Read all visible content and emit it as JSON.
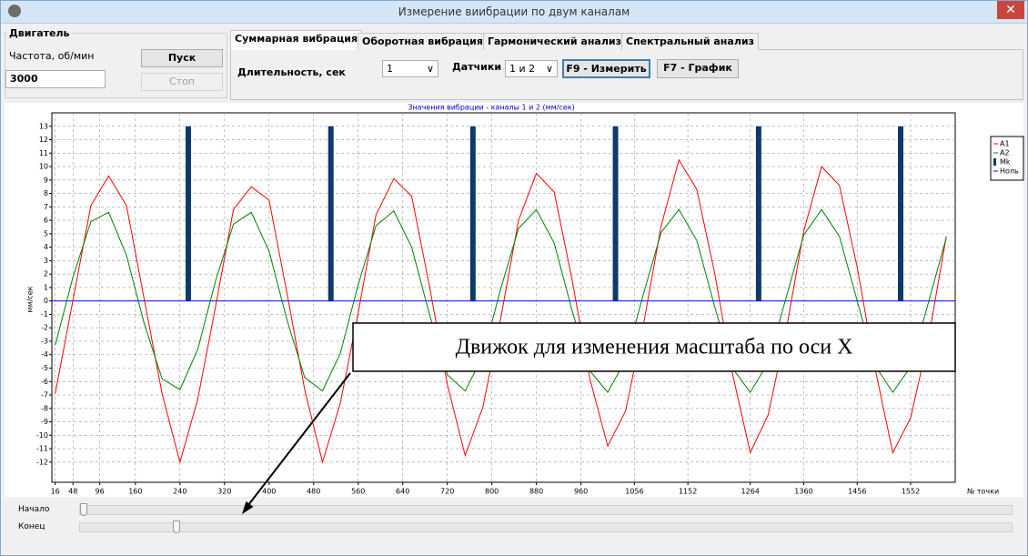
{
  "window": {
    "title": "Измерение виибрации по двум каналам"
  },
  "engine_panel": {
    "title": "Двигатель",
    "freq_label": "Частота, об/мин",
    "freq_value": 3000,
    "start": "Пуск",
    "stop": "Стоп"
  },
  "tabs": [
    "Суммарная вибрация",
    "Оборотная вибрация",
    "Гармонический анализ",
    "Спектральный анализ"
  ],
  "controls": {
    "duration_label": "Длительность, сек",
    "duration_value": 1,
    "sensors_label": "Датчики",
    "sensors_value": "1 и 2",
    "measure": "F9 - Измерить",
    "graph": "F7 - График"
  },
  "chart_data": {
    "type": "line",
    "title": "Значения вибрации  - каналы 1 и 2 (мм/сек)",
    "y_label": "мм/сек",
    "x_label": "№ точки",
    "x": [
      16,
      48,
      80,
      112,
      144,
      176,
      208,
      240,
      272,
      304,
      336,
      368,
      400,
      432,
      464,
      496,
      528,
      560,
      592,
      624,
      656,
      688,
      720,
      752,
      784,
      816,
      848,
      880,
      912,
      944,
      976,
      1008,
      1040,
      1072,
      1104,
      1136,
      1168,
      1200,
      1232,
      1264,
      1296,
      1328,
      1360,
      1392,
      1424,
      1456,
      1488,
      1520,
      1552,
      1584,
      1616
    ],
    "series": [
      {
        "name": "A1",
        "color": "#ff0000",
        "values": [
          -6.9,
          0.1,
          7.1,
          9.3,
          7.1,
          0.1,
          -6.9,
          -12.0,
          -7.3,
          -0.4,
          6.8,
          8.5,
          7.5,
          0.6,
          -6.6,
          -12.0,
          -7.6,
          -0.9,
          6.4,
          9.1,
          7.8,
          1.1,
          -6.2,
          -11.5,
          -7.9,
          -1.3,
          6.0,
          9.5,
          8.1,
          1.6,
          -5.8,
          -10.8,
          -8.2,
          -1.8,
          5.6,
          10.5,
          8.3,
          2.1,
          -5.4,
          -11.3,
          -8.5,
          -2.3,
          5.2,
          10.0,
          8.6,
          2.5,
          -5.0,
          -11.3,
          -8.7,
          -2.8,
          4.8
        ]
      },
      {
        "name": "A2",
        "color": "#008000",
        "values": [
          -3.3,
          1.8,
          5.9,
          6.6,
          3.4,
          -1.7,
          -5.8,
          -6.6,
          -3.6,
          1.5,
          5.7,
          6.6,
          3.7,
          -1.4,
          -5.7,
          -6.7,
          -3.9,
          1.2,
          5.6,
          6.7,
          4.0,
          -1.0,
          -5.5,
          -6.7,
          -4.1,
          0.9,
          5.4,
          6.8,
          4.3,
          -0.7,
          -5.2,
          -6.8,
          -4.4,
          0.5,
          5.1,
          6.8,
          4.5,
          -0.4,
          -5.0,
          -6.8,
          -4.6,
          0.2,
          4.9,
          6.8,
          4.8,
          0.0,
          -4.8,
          -6.8,
          -4.9,
          -0.1,
          4.7
        ]
      }
    ],
    "markers": {
      "name": "Mk",
      "color": "#0d3a6e",
      "x": [
        255,
        511,
        766,
        1022,
        1279,
        1534
      ],
      "values": [
        13,
        13,
        13,
        13,
        13,
        13
      ]
    },
    "zero": {
      "name": "Ноль",
      "color": "#0000ff",
      "value": 0
    },
    "xlim": [
      10,
      1632
    ],
    "ylim": [
      -13.5,
      14
    ],
    "xticks": [
      16,
      48,
      96,
      160,
      240,
      320,
      400,
      480,
      560,
      640,
      720,
      800,
      880,
      960,
      1056,
      1152,
      1264,
      1360,
      1456,
      1552
    ],
    "yticks": [
      -12,
      -11,
      -10,
      -9,
      -8,
      -7,
      -6,
      -5,
      -4,
      -3,
      -2,
      -1,
      0,
      1,
      2,
      3,
      4,
      5,
      6,
      7,
      8,
      9,
      10,
      11,
      12,
      13
    ],
    "grid": true,
    "legend": "right"
  },
  "annotation": "Движок для изменения масштаба по оси X",
  "sliders": {
    "start": "Начало",
    "end": "Конец"
  }
}
